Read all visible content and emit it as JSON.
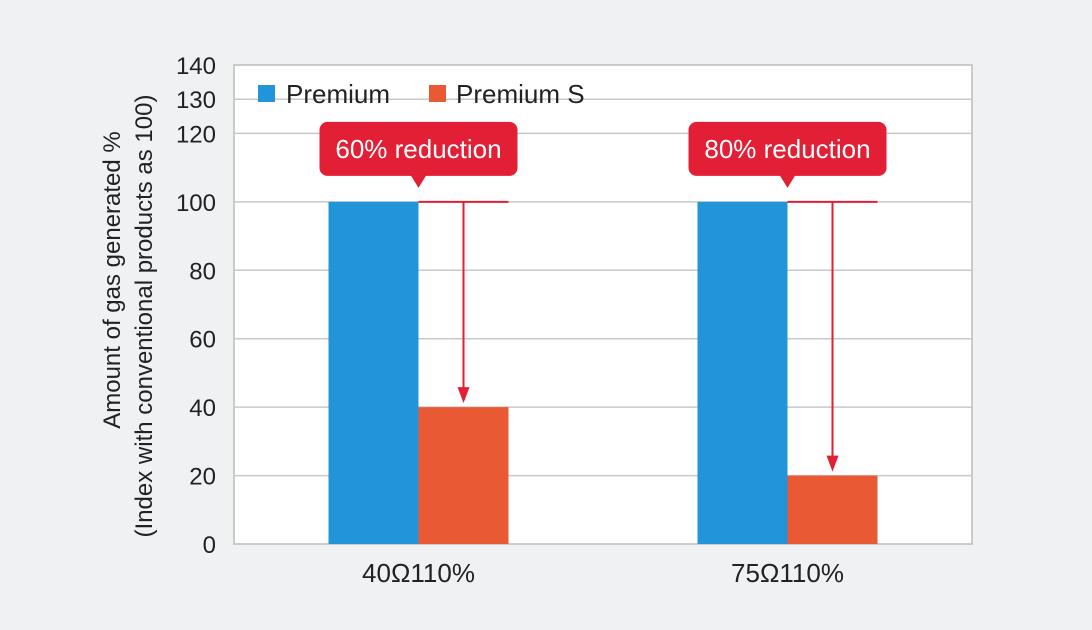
{
  "chart_data": {
    "type": "bar",
    "categories": [
      "40Ω110%",
      "75Ω110%"
    ],
    "series": [
      {
        "name": "Premium",
        "values": [
          100,
          100
        ],
        "color": "#2294d9"
      },
      {
        "name": "Premium S",
        "values": [
          40,
          20
        ],
        "color": "#e95a34"
      }
    ],
    "ylabel_line1": "Amount of gas generated %",
    "ylabel_line2": "(Index with conventional products as 100)",
    "ylim": [
      0,
      140
    ],
    "yticks": [
      0,
      20,
      40,
      60,
      80,
      100,
      120,
      130,
      140
    ],
    "grid": true,
    "legend": "top-left",
    "annotations": [
      "60% reduction",
      "80% reduction"
    ],
    "annotation_color": "#e21f34",
    "grid_color": "#c8c8c8",
    "plot_background": "#ffffff"
  }
}
